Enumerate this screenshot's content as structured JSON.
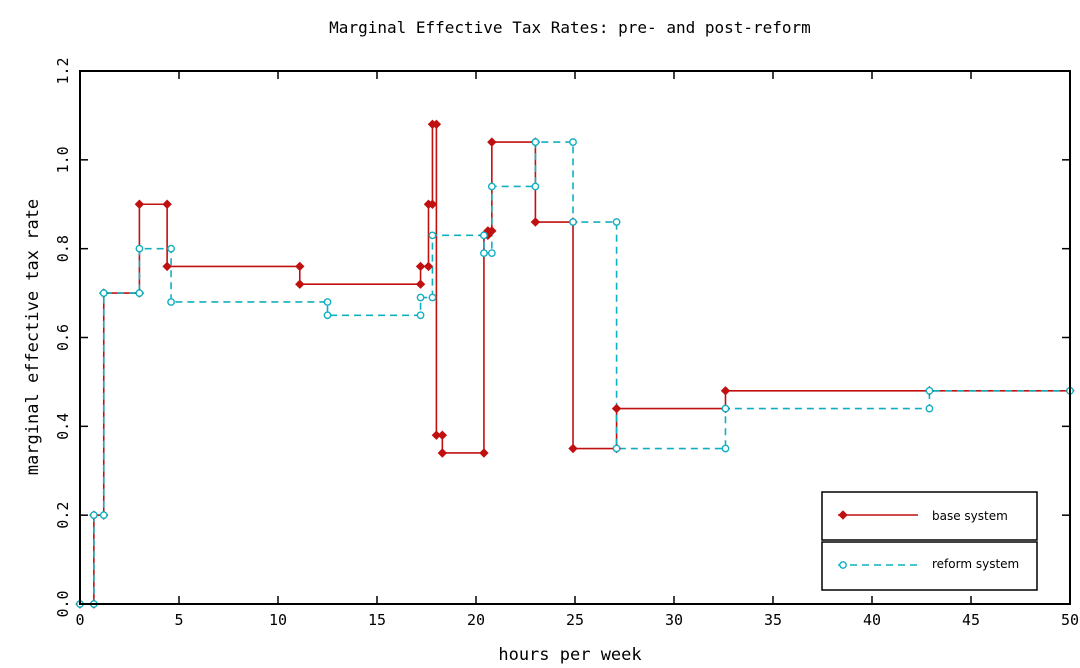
{
  "chart_data": {
    "type": "line",
    "step": true,
    "title": "Marginal Effective Tax Rates:  pre- and post-reform",
    "xlabel": "hours per week",
    "ylabel": "marginal effective tax rate",
    "xlim": [
      0,
      50
    ],
    "ylim": [
      0,
      1.2
    ],
    "xticks": [
      0,
      5,
      10,
      15,
      20,
      25,
      30,
      35,
      40,
      45,
      50
    ],
    "xtick_labels": [
      "0",
      "5",
      "10",
      "15",
      "20",
      "25",
      "30",
      "35",
      "40",
      "45",
      "50"
    ],
    "yticks": [
      0,
      0.2,
      0.4,
      0.6,
      0.8,
      1.0,
      1.2
    ],
    "ytick_labels": [
      "0.0",
      "0.2",
      "0.4",
      "0.6",
      "0.8",
      "1.0",
      "1.2"
    ],
    "grid": false,
    "legend_position": "bottom-right",
    "series": [
      {
        "name": "base system",
        "color": "#c01010",
        "line_style": "solid",
        "marker": "diamond",
        "x": [
          0,
          0.7,
          0.7,
          1.2,
          1.2,
          3.0,
          3.0,
          4.4,
          4.4,
          11.1,
          11.1,
          17.2,
          17.2,
          17.6,
          17.6,
          17.8,
          17.8,
          18.0,
          18.0,
          18.3,
          18.3,
          20.4,
          20.4,
          20.6,
          20.6,
          20.8,
          20.8,
          23.0,
          23.0,
          24.9,
          24.9,
          27.1,
          27.1,
          32.6,
          32.6,
          42.9,
          42.9,
          50
        ],
        "y": [
          0.0,
          0.0,
          0.2,
          0.2,
          0.7,
          0.7,
          0.9,
          0.9,
          0.76,
          0.76,
          0.72,
          0.72,
          0.76,
          0.76,
          0.9,
          0.9,
          1.08,
          1.08,
          0.38,
          0.38,
          0.34,
          0.34,
          0.83,
          0.83,
          0.84,
          0.84,
          1.04,
          1.04,
          0.86,
          0.86,
          0.35,
          0.35,
          0.44,
          0.44,
          0.48,
          0.48,
          0.48,
          0.48
        ]
      },
      {
        "name": "reform system",
        "color": "#10b0c0",
        "line_style": "dashed",
        "marker": "circle",
        "x": [
          0,
          0.7,
          0.7,
          1.2,
          1.2,
          3.0,
          3.0,
          4.6,
          4.6,
          12.5,
          12.5,
          17.2,
          17.2,
          17.8,
          17.8,
          20.4,
          20.4,
          20.8,
          20.8,
          23.0,
          23.0,
          24.9,
          24.9,
          27.1,
          27.1,
          32.6,
          32.6,
          42.9,
          42.9,
          50
        ],
        "y": [
          0.0,
          0.0,
          0.2,
          0.2,
          0.7,
          0.7,
          0.8,
          0.8,
          0.68,
          0.68,
          0.65,
          0.65,
          0.69,
          0.69,
          0.83,
          0.83,
          0.79,
          0.79,
          0.94,
          0.94,
          1.04,
          1.04,
          0.86,
          0.86,
          0.35,
          0.35,
          0.44,
          0.44,
          0.48,
          0.48
        ]
      }
    ]
  }
}
